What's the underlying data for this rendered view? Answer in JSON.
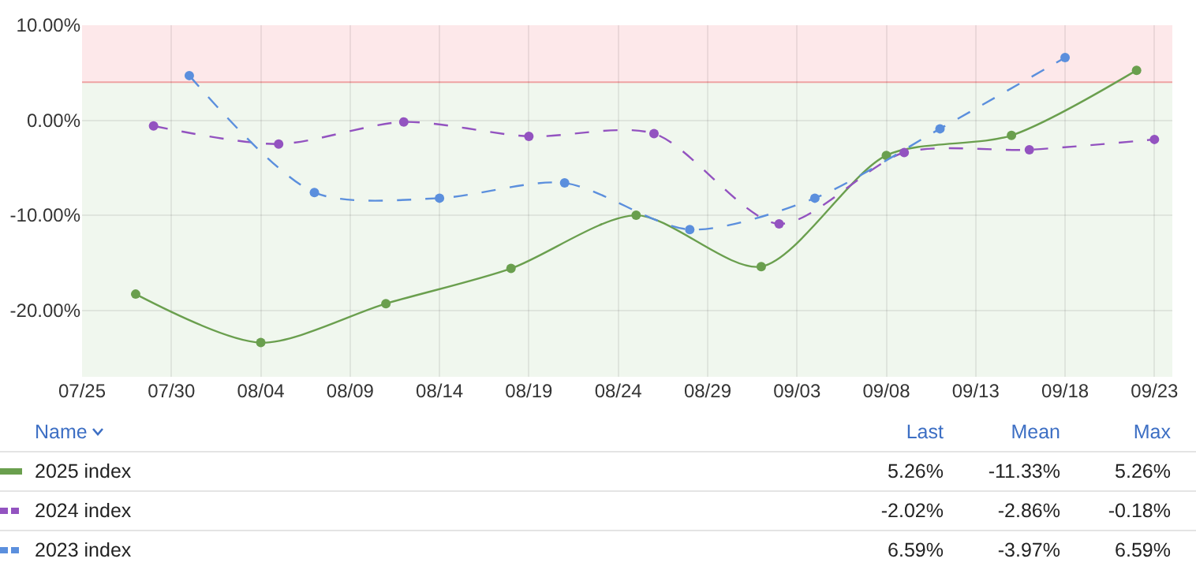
{
  "chart_data": {
    "type": "line",
    "x": [
      "--07-28",
      "--08-04",
      "--08-11",
      "--08-18",
      "--08-25",
      "--09-01",
      "--09-08",
      "--09-15",
      "--09-22"
    ],
    "series": [
      {
        "name": "2025 index",
        "color": "#6a9f4e",
        "line_style": "solid",
        "values": [
          -18.3,
          -23.4,
          -19.3,
          -15.6,
          -10.0,
          -15.4,
          -3.7,
          -1.6,
          5.26
        ]
      },
      {
        "name": "2024 index",
        "color": "#9353c0",
        "line_style": "dashed",
        "x": [
          "--07-29",
          "--08-05",
          "--08-12",
          "--08-19",
          "--08-26",
          "--09-02",
          "--09-09",
          "--09-16",
          "--09-23"
        ],
        "values": [
          -0.6,
          -2.5,
          -0.18,
          -1.7,
          -1.4,
          -10.9,
          -3.4,
          -3.1,
          -2.02
        ]
      },
      {
        "name": "2023 index",
        "color": "#5b8fdd",
        "line_style": "dashed",
        "x": [
          "--07-31",
          "--08-07",
          "--08-14",
          "--08-21",
          "--08-28",
          "--09-04",
          "--09-11",
          "--09-18"
        ],
        "values": [
          4.7,
          -7.6,
          -8.2,
          -6.6,
          -11.5,
          -8.2,
          -0.9,
          6.59
        ]
      }
    ],
    "xlim": [
      "--07-25",
      "--09-24"
    ],
    "xticks": [
      {
        "value": "--07-25",
        "label": "07/25"
      },
      {
        "value": "--07-30",
        "label": "07/30"
      },
      {
        "value": "--08-04",
        "label": "08/04"
      },
      {
        "value": "--08-09",
        "label": "08/09"
      },
      {
        "value": "--08-14",
        "label": "08/14"
      },
      {
        "value": "--08-19",
        "label": "08/19"
      },
      {
        "value": "--08-24",
        "label": "08/24"
      },
      {
        "value": "--08-29",
        "label": "08/29"
      },
      {
        "value": "--09-03",
        "label": "09/03"
      },
      {
        "value": "--09-08",
        "label": "09/08"
      },
      {
        "value": "--09-13",
        "label": "09/13"
      },
      {
        "value": "--09-18",
        "label": "09/18"
      },
      {
        "value": "--09-23",
        "label": "09/23"
      }
    ],
    "ylim": [
      -27,
      10
    ],
    "yticks": [
      {
        "value": 10,
        "label": "10.00%"
      },
      {
        "value": 0,
        "label": "0.00%"
      },
      {
        "value": -10,
        "label": "-10.00%"
      },
      {
        "value": -20,
        "label": "-20.00%"
      }
    ],
    "bands": [
      {
        "axis": "y",
        "from": 4,
        "to": 10,
        "color": "#fde8ea"
      },
      {
        "axis": "y",
        "from": -27,
        "to": 4,
        "color": "#f0f7ee"
      }
    ],
    "ref_lines": [
      {
        "axis": "y",
        "value": 4,
        "color": "#eea3a3",
        "line_style": "solid"
      }
    ],
    "grid": true,
    "legend": "bottom",
    "marker": "circle",
    "annotations": [
      "Name",
      "Last",
      "Mean",
      "Max",
      "5.26%",
      "-11.33%",
      "5.26%",
      "-2.02%",
      "-2.86%",
      "-0.18%",
      "6.59%",
      "-3.97%",
      "6.59%"
    ]
  }
}
